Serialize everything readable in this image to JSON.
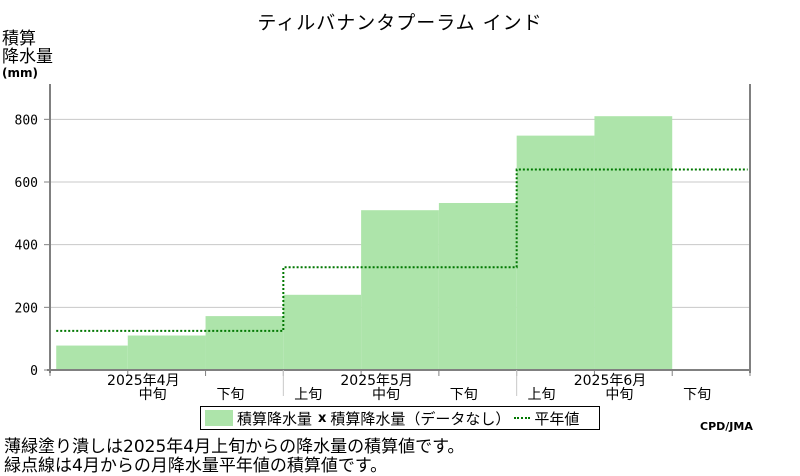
{
  "title": "ティルバナンタプーラム インド",
  "y_axis_label": [
    "積算",
    "降水量"
  ],
  "y_axis_unit": "(mm)",
  "legend": {
    "observed": "積算降水量",
    "missing": "積算降水量（データなし）",
    "normal": "平年値"
  },
  "credit": "CPD/JMA",
  "notes": [
    "薄緑塗り潰しは2025年4月上旬からの降水量の積算値です。",
    "緑点線は4月からの月降水量平年値の積算値です。"
  ],
  "colors": {
    "observed_fill": "#ade4aa",
    "normal_line": "#007700",
    "grid": "#c8c8c8",
    "axis": "#808080"
  },
  "chart_data": {
    "type": "area",
    "title": "ティルバナンタプーラム インド",
    "ylabel": "積算降水量 (mm)",
    "ylim": [
      0,
      900
    ],
    "yticks": [
      0,
      200,
      400,
      600,
      800
    ],
    "grid": true,
    "legend_position": "bottom",
    "x_periods": [
      "2025年4月上旬",
      "2025年4月中旬",
      "2025年4月下旬",
      "2025年5月上旬",
      "2025年5月中旬",
      "2025年5月下旬",
      "2025年6月上旬",
      "2025年6月中旬",
      "2025年6月下旬"
    ],
    "x_tick_labels": [
      "中旬",
      "下旬",
      "上旬",
      "中旬",
      "下旬",
      "上旬",
      "中旬",
      "下旬"
    ],
    "month_labels": [
      "2025年4月",
      "2025年5月",
      "2025年6月"
    ],
    "series": [
      {
        "name": "積算降水量",
        "style": "step-fill",
        "values": [
          78,
          110,
          172,
          240,
          510,
          533,
          748,
          810
        ]
      },
      {
        "name": "平年値",
        "style": "dotted-step",
        "values": [
          125,
          328,
          640
        ]
      }
    ]
  }
}
